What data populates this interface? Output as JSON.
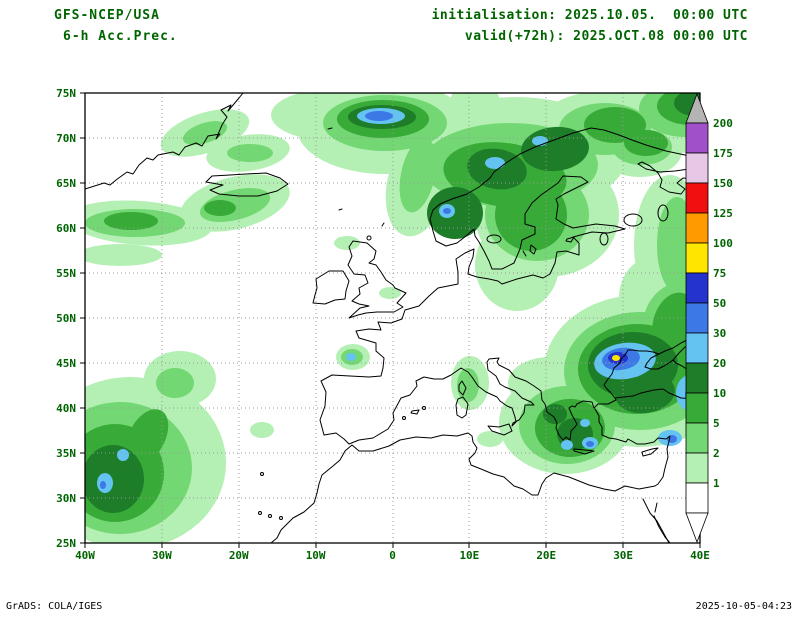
{
  "header": {
    "model": "GFS-NCEP/USA",
    "product": "6-h Acc.Prec.",
    "init": "initialisation: 2025.10.05.  00:00 UTC",
    "valid": "valid(+72h): 2025.OCT.08 00:00 UTC"
  },
  "map": {
    "lat_labels": [
      "75N",
      "70N",
      "65N",
      "60N",
      "55N",
      "50N",
      "45N",
      "40N",
      "35N",
      "30N",
      "25N"
    ],
    "lon_labels": [
      "40W",
      "30W",
      "20W",
      "10W",
      "0",
      "10E",
      "20E",
      "30E",
      "40E"
    ]
  },
  "colorbar": {
    "labels": [
      "200",
      "175",
      "150",
      "125",
      "100",
      "75",
      "50",
      "30",
      "20",
      "10",
      "5",
      "2",
      "1"
    ],
    "band_colors_top_to_bottom": [
      "#b4b4b4",
      "#a050c8",
      "#e6c8e6",
      "#f01010",
      "#ff9a00",
      "#ffe600",
      "#2433cd",
      "#3c78e6",
      "#64c3f0",
      "#1e7d28",
      "#37aa37",
      "#73d773",
      "#b4f0b4",
      "#ffffff"
    ]
  },
  "colors": {
    "text_green": "#006400",
    "precip_1": "#b4f0b4",
    "precip_2": "#73d773",
    "precip_5": "#37aa37",
    "precip_10": "#1e7d28",
    "precip_20": "#64c3f0",
    "precip_30": "#3c78e6",
    "precip_50": "#2433cd",
    "precip_75": "#ffe600"
  },
  "footer": {
    "left": "GrADS: COLA/IGES",
    "right": "2025-10-05-04:23"
  }
}
